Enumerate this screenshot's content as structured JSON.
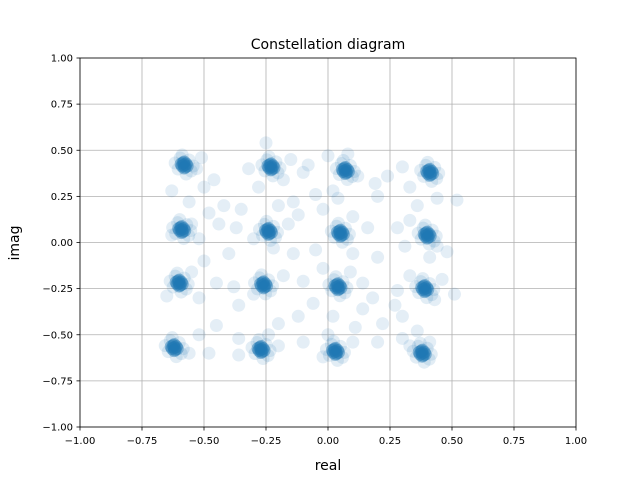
{
  "chart_data": {
    "type": "scatter",
    "title": "Constellation diagram",
    "xlabel": "real",
    "ylabel": "imag",
    "xlim": [
      -1.0,
      1.0
    ],
    "ylim": [
      -1.0,
      1.0
    ],
    "grid": true,
    "color": "#1f77b4",
    "xticks": [
      "−1.00",
      "−0.75",
      "−0.50",
      "−0.25",
      "0.00",
      "0.25",
      "0.50",
      "0.75",
      "1.00"
    ],
    "yticks": [
      "−1.00",
      "−0.75",
      "−0.50",
      "−0.25",
      "0.00",
      "0.25",
      "0.50",
      "0.75",
      "1.00"
    ],
    "xtick_values": [
      -1.0,
      -0.75,
      -0.5,
      -0.25,
      0.0,
      0.25,
      0.5,
      0.75,
      1.0
    ],
    "ytick_values": [
      -1.0,
      -0.75,
      -0.5,
      -0.25,
      0.0,
      0.25,
      0.5,
      0.75,
      1.0
    ],
    "clusters": [
      {
        "x": -0.58,
        "y": 0.42
      },
      {
        "x": -0.23,
        "y": 0.41
      },
      {
        "x": 0.07,
        "y": 0.39
      },
      {
        "x": 0.41,
        "y": 0.38
      },
      {
        "x": -0.59,
        "y": 0.07
      },
      {
        "x": -0.24,
        "y": 0.06
      },
      {
        "x": 0.05,
        "y": 0.05
      },
      {
        "x": 0.4,
        "y": 0.04
      },
      {
        "x": -0.6,
        "y": -0.22
      },
      {
        "x": -0.26,
        "y": -0.23
      },
      {
        "x": 0.04,
        "y": -0.24
      },
      {
        "x": 0.39,
        "y": -0.25
      },
      {
        "x": -0.62,
        "y": -0.57
      },
      {
        "x": -0.27,
        "y": -0.58
      },
      {
        "x": 0.03,
        "y": -0.59
      },
      {
        "x": 0.38,
        "y": -0.6
      }
    ],
    "scatter_points": [
      [
        -0.51,
        0.46
      ],
      [
        -0.53,
        0.4
      ],
      [
        -0.5,
        0.3
      ],
      [
        -0.63,
        0.28
      ],
      [
        -0.56,
        0.22
      ],
      [
        -0.25,
        0.54
      ],
      [
        -0.15,
        0.45
      ],
      [
        -0.32,
        0.4
      ],
      [
        -0.18,
        0.34
      ],
      [
        -0.1,
        0.38
      ],
      [
        0.0,
        0.47
      ],
      [
        0.12,
        0.36
      ],
      [
        0.02,
        0.28
      ],
      [
        0.08,
        0.48
      ],
      [
        0.19,
        0.32
      ],
      [
        0.3,
        0.41
      ],
      [
        0.33,
        0.3
      ],
      [
        0.44,
        0.24
      ],
      [
        0.36,
        0.2
      ],
      [
        0.52,
        0.23
      ],
      [
        0.2,
        0.25
      ],
      [
        -0.05,
        0.26
      ],
      [
        -0.14,
        0.22
      ],
      [
        -0.2,
        0.2
      ],
      [
        -0.35,
        0.18
      ],
      [
        -0.42,
        0.2
      ],
      [
        -0.48,
        0.16
      ],
      [
        -0.55,
        0.1
      ],
      [
        -0.63,
        0.04
      ],
      [
        -0.52,
        0.02
      ],
      [
        -0.44,
        0.1
      ],
      [
        -0.37,
        0.08
      ],
      [
        -0.3,
        0.02
      ],
      [
        -0.16,
        0.1
      ],
      [
        -0.12,
        0.15
      ],
      [
        -0.02,
        0.18
      ],
      [
        0.1,
        0.14
      ],
      [
        0.16,
        0.08
      ],
      [
        0.28,
        0.08
      ],
      [
        0.33,
        0.12
      ],
      [
        0.44,
        -0.02
      ],
      [
        0.48,
        -0.05
      ],
      [
        0.31,
        -0.02
      ],
      [
        0.2,
        -0.08
      ],
      [
        0.1,
        -0.06
      ],
      [
        -0.05,
        -0.04
      ],
      [
        -0.14,
        -0.06
      ],
      [
        -0.22,
        -0.03
      ],
      [
        -0.4,
        -0.06
      ],
      [
        -0.5,
        -0.1
      ],
      [
        -0.55,
        -0.16
      ],
      [
        -0.65,
        -0.29
      ],
      [
        -0.52,
        -0.3
      ],
      [
        -0.45,
        -0.22
      ],
      [
        -0.36,
        -0.34
      ],
      [
        -0.3,
        -0.28
      ],
      [
        -0.18,
        -0.18
      ],
      [
        -0.1,
        -0.21
      ],
      [
        -0.02,
        -0.14
      ],
      [
        0.09,
        -0.16
      ],
      [
        0.14,
        -0.22
      ],
      [
        0.18,
        -0.3
      ],
      [
        0.28,
        -0.26
      ],
      [
        0.33,
        -0.18
      ],
      [
        0.46,
        -0.2
      ],
      [
        0.51,
        -0.28
      ],
      [
        0.43,
        -0.31
      ],
      [
        0.3,
        -0.4
      ],
      [
        0.22,
        -0.44
      ],
      [
        0.11,
        -0.46
      ],
      [
        0.02,
        -0.4
      ],
      [
        -0.06,
        -0.33
      ],
      [
        -0.12,
        -0.4
      ],
      [
        -0.2,
        -0.44
      ],
      [
        -0.24,
        -0.5
      ],
      [
        -0.36,
        -0.52
      ],
      [
        -0.45,
        -0.45
      ],
      [
        -0.52,
        -0.5
      ],
      [
        -0.56,
        -0.6
      ],
      [
        -0.48,
        -0.6
      ],
      [
        -0.36,
        -0.61
      ],
      [
        -0.2,
        -0.56
      ],
      [
        -0.1,
        -0.54
      ],
      [
        0.0,
        -0.5
      ],
      [
        0.1,
        -0.54
      ],
      [
        0.2,
        -0.54
      ],
      [
        0.3,
        -0.52
      ],
      [
        0.33,
        -0.56
      ],
      [
        0.36,
        -0.48
      ],
      [
        0.41,
        -0.54
      ],
      [
        0.27,
        -0.34
      ],
      [
        0.41,
        -0.08
      ],
      [
        -0.08,
        0.42
      ],
      [
        -0.28,
        0.3
      ],
      [
        0.24,
        0.36
      ],
      [
        -0.46,
        0.34
      ],
      [
        0.14,
        -0.36
      ],
      [
        -0.38,
        -0.24
      ],
      [
        0.04,
        0.24
      ],
      [
        -0.02,
        -0.62
      ]
    ]
  }
}
